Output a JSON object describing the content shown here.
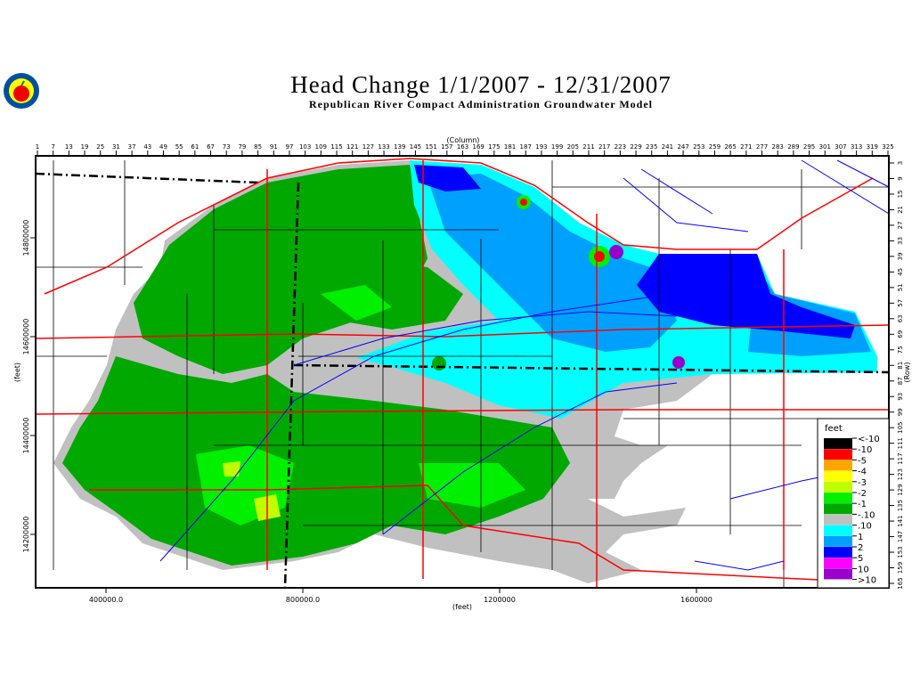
{
  "header": {
    "title": "Head Change 1/1/2007 - 12/31/2007",
    "subtitle": "Republican River Compact Administration Groundwater Model",
    "logo": "rrca-apple-seal-logo"
  },
  "axes": {
    "top_label": "(Column)",
    "right_label": "(Row)",
    "left_label": "(feet)",
    "bottom_label": "(feet)",
    "column_ticks": [
      1,
      7,
      13,
      19,
      25,
      31,
      37,
      43,
      49,
      55,
      61,
      67,
      73,
      79,
      85,
      91,
      97,
      103,
      109,
      115,
      121,
      127,
      133,
      139,
      145,
      151,
      157,
      163,
      169,
      175,
      181,
      187,
      193,
      199,
      205,
      211,
      217,
      223,
      229,
      235,
      241,
      247,
      253,
      259,
      265,
      271,
      277,
      283,
      289,
      295,
      301,
      307,
      313,
      319,
      325
    ],
    "row_ticks": [
      3,
      9,
      15,
      21,
      27,
      33,
      39,
      45,
      51,
      57,
      63,
      69,
      75,
      81,
      87,
      93,
      99,
      105,
      111,
      117,
      123,
      129,
      135,
      141,
      147,
      153,
      159,
      165
    ],
    "y_ticks": [
      "14800000",
      "14600000",
      "14400000",
      "14200000"
    ],
    "x_ticks": [
      "400000.0",
      "800000.0",
      "1200000",
      "1600000"
    ]
  },
  "legend": {
    "title": "feet",
    "entries": [
      {
        "label": "<-10",
        "color": "#000000"
      },
      {
        "label": "-10",
        "color": "#ff0000"
      },
      {
        "label": "-5",
        "color": "#ffa500"
      },
      {
        "label": "-4",
        "color": "#ffff00"
      },
      {
        "label": "-3",
        "color": "#c0ff00"
      },
      {
        "label": "-2",
        "color": "#00f000"
      },
      {
        "label": "-1",
        "color": "#00a800"
      },
      {
        "label": "-.10",
        "color": "#c0c0c0"
      },
      {
        "label": ".10",
        "color": "#00ffff"
      },
      {
        "label": "1",
        "color": "#00a0ff"
      },
      {
        "label": "2",
        "color": "#0000ff"
      },
      {
        "label": "5",
        "color": "#ff00ff"
      },
      {
        "label": "10",
        "color": "#9900cc"
      },
      {
        "label": ">10",
        "color": ""
      }
    ]
  }
}
